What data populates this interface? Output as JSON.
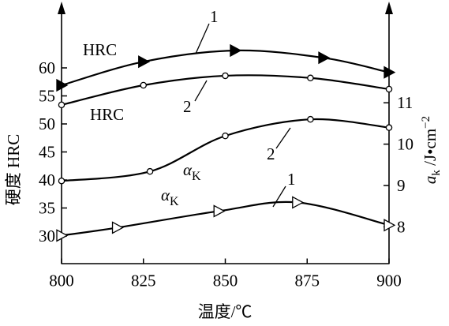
{
  "chart_data": {
    "type": "line",
    "xlabel": "温度/℃",
    "ylabel": "硬度 HRC",
    "y2label": [
      "a",
      "k",
      " /J•cm",
      "−2"
    ],
    "xlim": [
      800,
      900
    ],
    "xticks": [
      800,
      825,
      850,
      875,
      900
    ],
    "ylim": [
      25,
      70
    ],
    "yticks": [
      30,
      35,
      40,
      45,
      50,
      55,
      60
    ],
    "y2lim": [
      7.1,
      13.2
    ],
    "y2ticks": [
      8,
      9,
      10,
      11
    ],
    "series": [
      {
        "x": [
          800,
          825,
          853,
          880,
          900
        ],
        "values": [
          56.9,
          61.1,
          63.1,
          61.8,
          59.2
        ],
        "axis": "y",
        "marker": "triangle-filled",
        "color": "#000000"
      },
      {
        "x": [
          800,
          825,
          850,
          876,
          900
        ],
        "values": [
          53.4,
          56.9,
          58.6,
          58.2,
          56.2
        ],
        "axis": "y",
        "marker": "circle-open",
        "color": "#000000"
      },
      {
        "x": [
          800,
          827,
          850,
          876,
          900
        ],
        "values": [
          9.11,
          9.34,
          10.2,
          10.6,
          10.4
        ],
        "axis": "y2",
        "marker": "circle-open",
        "color": "#000000"
      },
      {
        "x": [
          800,
          817,
          848,
          872,
          900
        ],
        "values": [
          7.79,
          7.98,
          8.38,
          8.59,
          8.04
        ],
        "axis": "y2",
        "marker": "triangle-open",
        "color": "#000000"
      }
    ],
    "annotations": [
      {
        "text": "HRC"
      },
      {
        "text": "HRC"
      },
      {
        "text": "1"
      },
      {
        "text": "2"
      },
      {
        "text": "2"
      },
      {
        "text": "1"
      },
      {
        "text": "α",
        "sub": "K"
      },
      {
        "text": "α",
        "sub": "K"
      }
    ]
  }
}
